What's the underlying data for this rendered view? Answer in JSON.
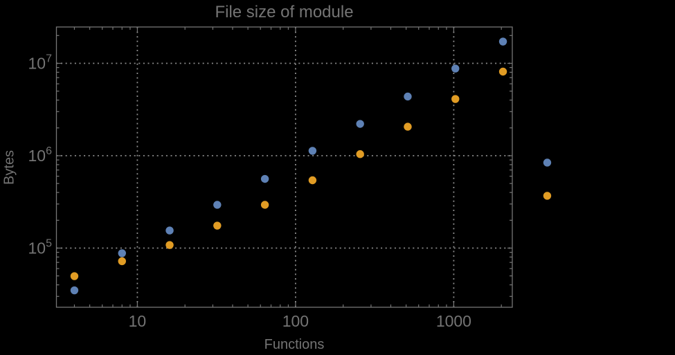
{
  "chart_data": {
    "type": "scatter",
    "title": "File size of module",
    "xlabel": "Functions",
    "ylabel": "Bytes",
    "xscale": "log",
    "yscale": "log",
    "xlim": [
      3.1,
      2350
    ],
    "ylim": [
      22900,
      24700000
    ],
    "grid": "dotted lines at decade ticks only, frame on all four sides with inward ticks",
    "legend": "none",
    "x_tick_labels": [
      "10",
      "100",
      "1000"
    ],
    "x_tick_values": [
      10,
      100,
      1000
    ],
    "y_tick_base": "10",
    "y_tick_exponents": [
      5,
      6,
      7
    ],
    "x": [
      4,
      8,
      16,
      32,
      64,
      128,
      256,
      512,
      1024,
      2048,
      3900
    ],
    "series": [
      {
        "name": "series-1-blue",
        "color": "#5E81B5",
        "values": [
          34900,
          88000,
          155000,
          294000,
          561000,
          1130000,
          2210000,
          4370000,
          8780000,
          17200000,
          842000
        ]
      },
      {
        "name": "series-2-orange",
        "color": "#E19C24",
        "values": [
          49700,
          72100,
          108000,
          175000,
          294000,
          542000,
          1040000,
          2060000,
          4110000,
          8130000,
          368000
        ]
      }
    ],
    "style": {
      "background_color": "#000000",
      "text_color": "#747474",
      "frame_color": "#767676",
      "grid_color": "#8C8C8C"
    },
    "note": "last data pair of each series is plotted beyond the right frame edge (not clipped)"
  }
}
